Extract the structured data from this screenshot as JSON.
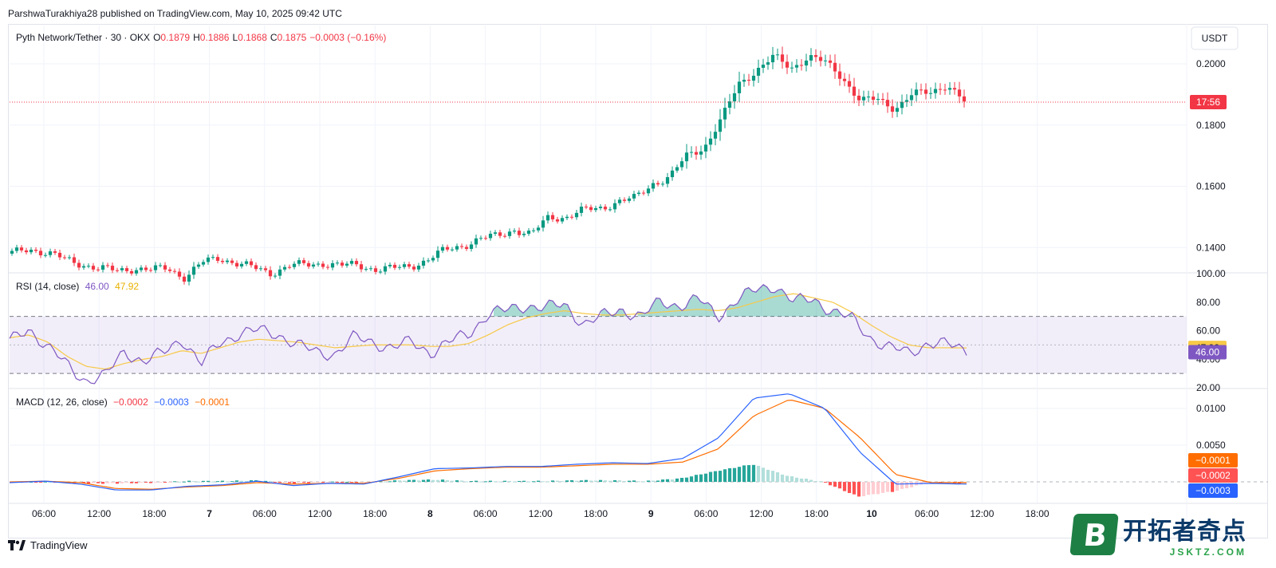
{
  "header": {
    "published": "ParshwaTurakhiya28 published on TradingView.com, May 10, 2025 09:42 UTC"
  },
  "main_legend": {
    "symbol": "Pyth Network/Tether · 30 · OKX",
    "o_label": "O",
    "o": "0.1879",
    "h_label": "H",
    "h": "0.1886",
    "l_label": "L",
    "l": "0.1868",
    "c_label": "C",
    "c": "0.1875",
    "change": "−0.0003 (−0.16%)"
  },
  "currency_button": "USDT",
  "rsi_legend": {
    "name": "RSI (14, close)",
    "rsi": "46.00",
    "ma": "47.92"
  },
  "macd_legend": {
    "name": "MACD (12, 26, close)",
    "hist": "−0.0002",
    "macd": "−0.0003",
    "signal": "−0.0001"
  },
  "footer": {
    "brand": "TradingView"
  },
  "watermark": {
    "letter": "B",
    "cn": "开拓者奇点",
    "en": "JSKTZ.COM"
  },
  "colors": {
    "up": "#089981",
    "down": "#f23645",
    "rsi": "#7e57c2",
    "rsi_ma": "#f7c948",
    "macd": "#2962ff",
    "signal": "#ff6d00"
  },
  "chart_data": [
    {
      "type": "candlestick",
      "title": "Pyth Network/Tether · 30 · OKX",
      "x_ticks": [
        "06:00",
        "12:00",
        "18:00",
        "7",
        "06:00",
        "12:00",
        "18:00",
        "8",
        "06:00",
        "12:00",
        "18:00",
        "9",
        "06:00",
        "12:00",
        "18:00",
        "10",
        "06:00",
        "12:00",
        "18:00"
      ],
      "y_ticks": [
        "0.2000",
        "0.1800",
        "0.1600",
        "0.1400"
      ],
      "ylim": [
        0.132,
        0.2125
      ],
      "last_price": 0.1875,
      "countdown": "17:56",
      "close_path": [
        0.138,
        0.1398,
        0.1382,
        0.1362,
        0.1348,
        0.133,
        0.1325,
        0.1333,
        0.1325,
        0.1334,
        0.1302,
        0.135,
        0.1368,
        0.1348,
        0.1332,
        0.1318,
        0.134,
        0.1343,
        0.135,
        0.134,
        0.1343,
        0.133,
        0.133,
        0.134,
        0.136,
        0.139,
        0.1407,
        0.1427,
        0.1437,
        0.146,
        0.144,
        0.15,
        0.15,
        0.152,
        0.153,
        0.155,
        0.156,
        0.161,
        0.163,
        0.17,
        0.173,
        0.182,
        0.1935,
        0.198,
        0.2022,
        0.1986,
        0.2025,
        0.2002,
        0.1955,
        0.188,
        0.1882,
        0.1856,
        0.19,
        0.1905,
        0.1935,
        0.1875
      ]
    },
    {
      "type": "line",
      "title": "RSI (14, close)",
      "y_ticks": [
        "100.00",
        "80.00",
        "60.00",
        "40.00",
        "20.00"
      ],
      "ylim": [
        20,
        100
      ],
      "bands": [
        70,
        50,
        30
      ],
      "rsi_last": 46.0,
      "ma_last": 47.92,
      "rsi_path": [
        52,
        62,
        48,
        36,
        25,
        28,
        46,
        38,
        44,
        55,
        36,
        52,
        58,
        60,
        58,
        50,
        45,
        44,
        55,
        52,
        48,
        52,
        45,
        52,
        58,
        72,
        74,
        78,
        76,
        78,
        65,
        70,
        75,
        70,
        80,
        78,
        82,
        70,
        82,
        88,
        92,
        80,
        82,
        74,
        68,
        55,
        48,
        44,
        52,
        50,
        46
      ],
      "ma_path": [
        55,
        57,
        52,
        42,
        35,
        33,
        37,
        40,
        42,
        46,
        44,
        48,
        52,
        54,
        53,
        52,
        50,
        48,
        49,
        50,
        50,
        50,
        49,
        49,
        51,
        57,
        64,
        69,
        72,
        74,
        72,
        71,
        71,
        72,
        73,
        74,
        75,
        74,
        76,
        80,
        84,
        86,
        83,
        80,
        73,
        64,
        56,
        50,
        48,
        48,
        47.9
      ]
    },
    {
      "type": "bar",
      "title": "MACD (12, 26, close)",
      "y_ticks": [
        "0.0100",
        "0.0050"
      ],
      "ylim": [
        -0.0026,
        0.0126
      ],
      "macd_last": -0.0003,
      "signal_last": -0.0001,
      "hist_last": -0.0002,
      "macd_path": [
        -0.0001,
        0.0001,
        -0.0003,
        -0.0011,
        -0.0011,
        -0.0006,
        -0.0004,
        0.0001,
        -0.0005,
        -0.0002,
        -0.0003,
        0.0007,
        0.0018,
        0.0019,
        0.0021,
        0.0021,
        0.0024,
        0.0026,
        0.0025,
        0.0032,
        0.006,
        0.0114,
        0.012,
        0.01,
        0.004,
        -0.0003,
        -0.0002,
        -0.0003
      ],
      "signal_path": [
        0.0,
        0.0001,
        -0.0001,
        -0.0009,
        -0.001,
        -0.0007,
        -0.0005,
        -0.0001,
        -0.0003,
        -0.0002,
        -0.0002,
        0.0005,
        0.0015,
        0.0018,
        0.002,
        0.002,
        0.0022,
        0.0024,
        0.0024,
        0.0027,
        0.0045,
        0.009,
        0.0112,
        0.01,
        0.006,
        0.001,
        -0.0001,
        -0.0001
      ]
    }
  ]
}
